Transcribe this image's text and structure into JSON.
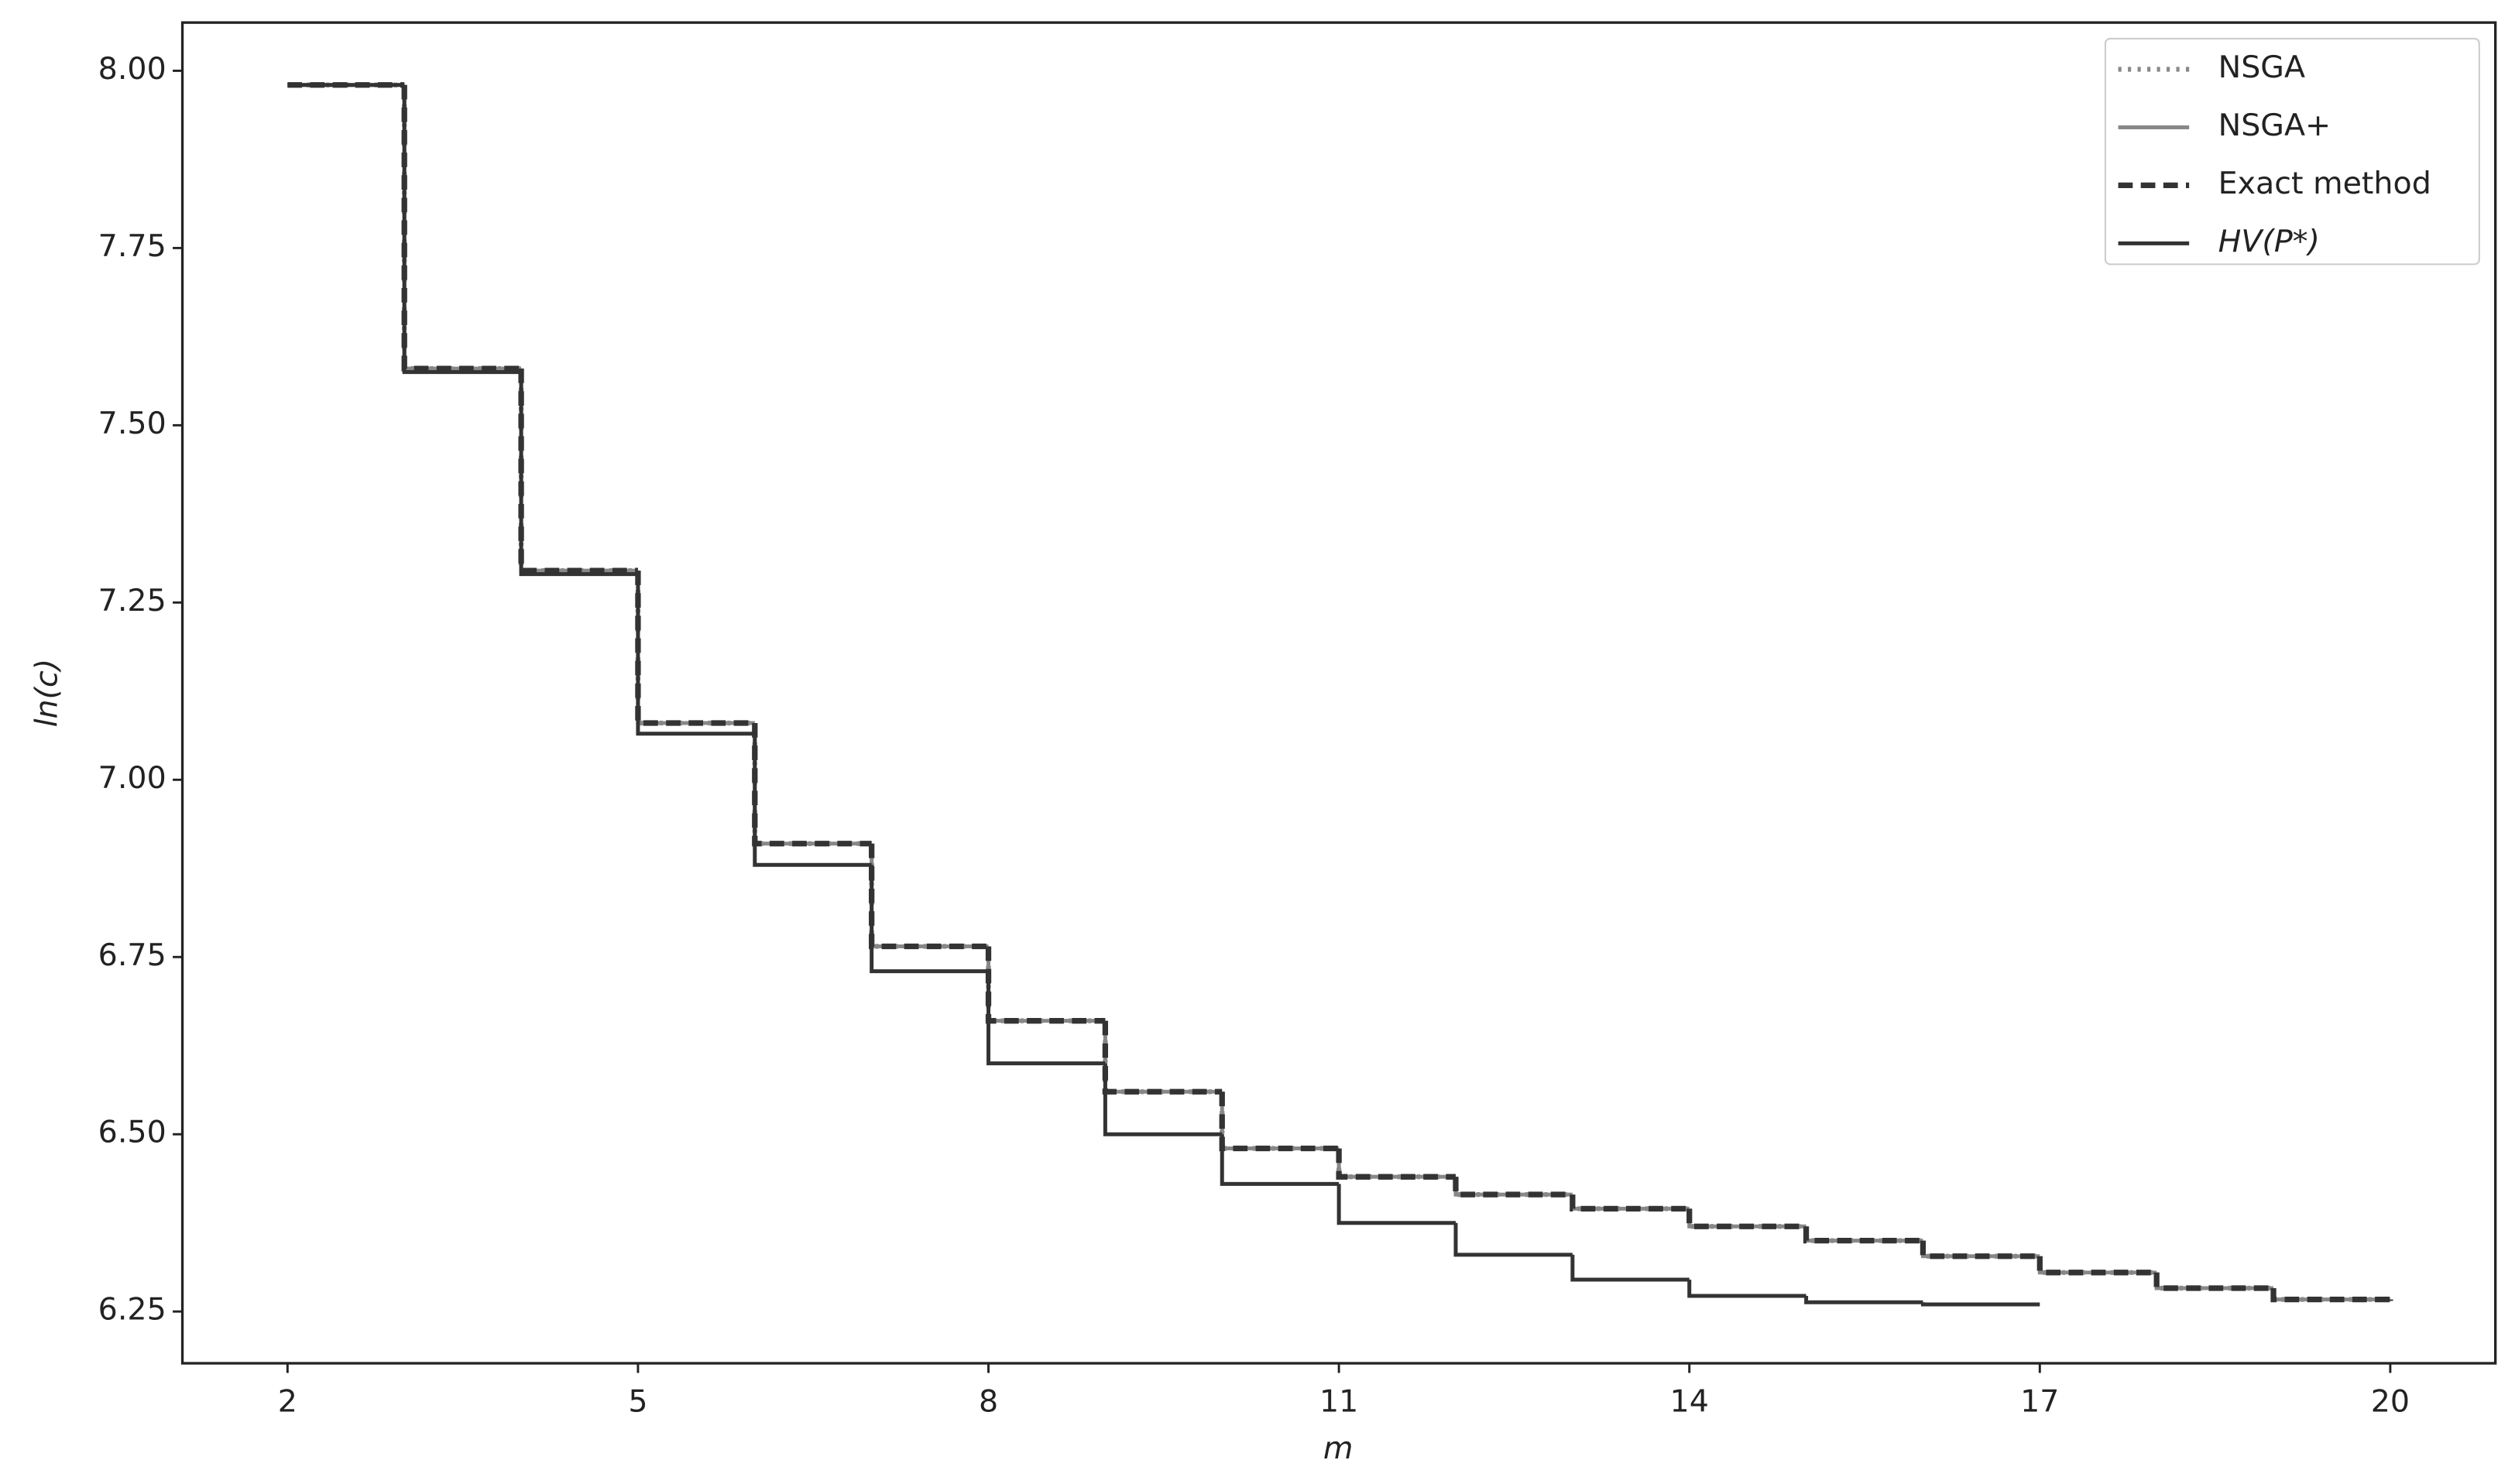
{
  "chart_data": {
    "type": "step",
    "x_label": "m",
    "y_label": "ln(c)",
    "x": [
      2,
      3,
      4,
      5,
      6,
      7,
      8,
      9,
      10,
      11,
      12,
      13,
      14,
      15,
      16,
      17,
      18,
      19,
      20
    ],
    "series": [
      {
        "name": "NSGA",
        "color": "#888888",
        "style": "dotted",
        "values": [
          7.98,
          7.58,
          7.295,
          7.08,
          6.91,
          6.765,
          6.66,
          6.56,
          6.48,
          6.44,
          6.415,
          6.395,
          6.37,
          6.35,
          6.328,
          6.305,
          6.283,
          6.267,
          6.265
        ]
      },
      {
        "name": "NSGA+",
        "color": "#888888",
        "style": "solid",
        "values": [
          7.98,
          7.58,
          7.295,
          7.08,
          6.91,
          6.765,
          6.66,
          6.56,
          6.48,
          6.44,
          6.415,
          6.395,
          6.37,
          6.35,
          6.328,
          6.305,
          6.283,
          6.267,
          6.265
        ]
      },
      {
        "name": "Exact method",
        "color": "#333333",
        "style": "dashed",
        "values": [
          7.98,
          7.58,
          7.295,
          7.08,
          6.91,
          6.765,
          6.66,
          6.56,
          6.48,
          6.44,
          6.415,
          6.395,
          6.37,
          6.35,
          6.328,
          6.305,
          6.283,
          6.267,
          6.265
        ]
      },
      {
        "name": "HV(P*)",
        "color": "#333333",
        "style": "solid",
        "values": [
          7.98,
          7.575,
          7.29,
          7.065,
          6.88,
          6.73,
          6.6,
          6.5,
          6.43,
          6.375,
          6.33,
          6.295,
          6.272,
          6.263,
          6.26,
          6.26,
          null,
          null,
          null
        ]
      }
    ],
    "xlim": [
      1.1,
      20.9
    ],
    "xticks": [
      2,
      5,
      8,
      11,
      14,
      17,
      20
    ],
    "ylim": [
      6.177,
      8.068
    ],
    "yticks": [
      6.25,
      {
        "value": 6.5,
        "label": "6.50"
      },
      6.75,
      {
        "value": 7,
        "label": "7.00"
      },
      7.25,
      {
        "value": 7.5,
        "label": "7.50"
      },
      7.75,
      {
        "value": 8,
        "label": "8.00"
      }
    ],
    "legend": "upper right",
    "grid": false
  }
}
